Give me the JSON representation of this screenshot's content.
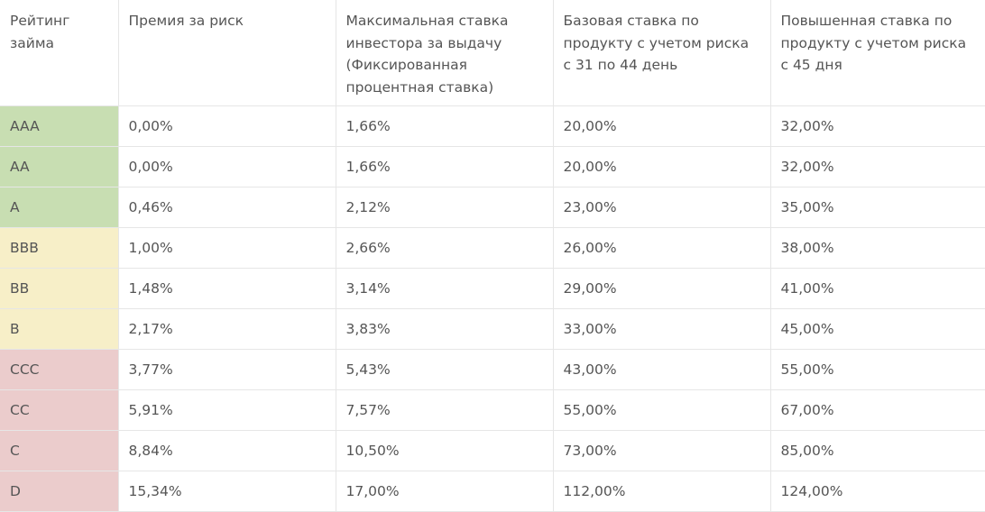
{
  "table": {
    "headers": [
      "Рейтинг займа",
      "Премия за риск",
      "Максимальная ставка инвестора за выдачу (Фиксированная процентная ставка)",
      "Базовая ставка по продукту с учетом риска с 31 по 44 день",
      "Повышенная ставка по продукту с учетом риска с 45 дня"
    ],
    "rating_colors": {
      "green": "#c8deb2",
      "yellow": "#f7efc8",
      "red": "#ebcccc"
    },
    "rows": [
      {
        "rating": "AAA",
        "risk_premium": "0,00%",
        "max_rate": "1,66%",
        "base_rate": "20,00%",
        "increased_rate": "32,00%",
        "color": "green"
      },
      {
        "rating": "AA",
        "risk_premium": "0,00%",
        "max_rate": "1,66%",
        "base_rate": "20,00%",
        "increased_rate": "32,00%",
        "color": "green"
      },
      {
        "rating": "A",
        "risk_premium": "0,46%",
        "max_rate": "2,12%",
        "base_rate": "23,00%",
        "increased_rate": "35,00%",
        "color": "green"
      },
      {
        "rating": "BBB",
        "risk_premium": "1,00%",
        "max_rate": "2,66%",
        "base_rate": "26,00%",
        "increased_rate": "38,00%",
        "color": "yellow"
      },
      {
        "rating": "BB",
        "risk_premium": "1,48%",
        "max_rate": "3,14%",
        "base_rate": "29,00%",
        "increased_rate": "41,00%",
        "color": "yellow"
      },
      {
        "rating": "B",
        "risk_premium": "2,17%",
        "max_rate": "3,83%",
        "base_rate": "33,00%",
        "increased_rate": "45,00%",
        "color": "yellow"
      },
      {
        "rating": "CCC",
        "risk_premium": "3,77%",
        "max_rate": "5,43%",
        "base_rate": "43,00%",
        "increased_rate": "55,00%",
        "color": "red"
      },
      {
        "rating": "CC",
        "risk_premium": "5,91%",
        "max_rate": "7,57%",
        "base_rate": "55,00%",
        "increased_rate": "67,00%",
        "color": "red"
      },
      {
        "rating": "C",
        "risk_premium": "8,84%",
        "max_rate": "10,50%",
        "base_rate": "73,00%",
        "increased_rate": "85,00%",
        "color": "red"
      },
      {
        "rating": "D",
        "risk_premium": "15,34%",
        "max_rate": "17,00%",
        "base_rate": "112,00%",
        "increased_rate": "124,00%",
        "color": "red"
      }
    ]
  }
}
